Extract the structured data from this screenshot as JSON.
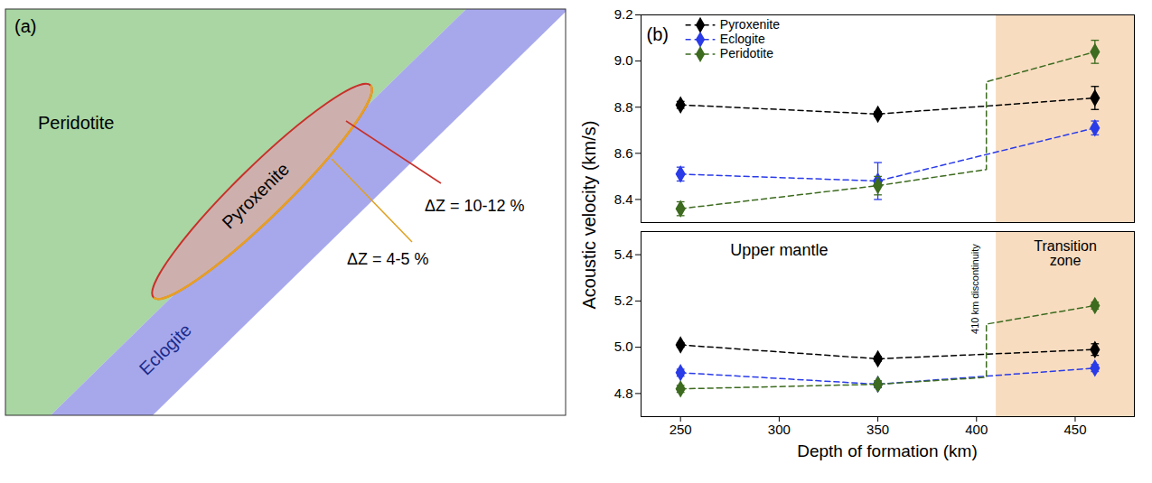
{
  "panel_a": {
    "label": "(a)",
    "regions": [
      "Peridotite",
      "Pyroxenite",
      "Eclogite"
    ],
    "annotations": [
      "ΔZ = 10-12 %",
      "ΔZ = 4-5 %"
    ]
  },
  "chart_data": {
    "type": "line",
    "panel_label": "(b)",
    "xlabel": "Depth of formation (km)",
    "ylabel": "Acoustic velocity (km/s)",
    "x": [
      250,
      350,
      460
    ],
    "xlim": [
      230,
      480
    ],
    "xticks": [
      250,
      300,
      350,
      400,
      450
    ],
    "upper": {
      "ylim": [
        8.3,
        9.2
      ],
      "yticks": [
        8.4,
        8.6,
        8.8,
        {
          "value": 9,
          "label": "9.0"
        },
        9.2
      ]
    },
    "lower": {
      "ylim": [
        4.7,
        5.5
      ],
      "yticks": [
        4.8,
        {
          "value": 5,
          "label": "5.0"
        },
        5.2,
        5.4
      ]
    },
    "legend": "top-left",
    "upper_mantle_label": "Upper mantle",
    "transition_zone": {
      "label": "Transition zone",
      "x_start": 410
    },
    "discontinuity": {
      "label": "410 km discontinuity",
      "x": 405
    },
    "series": [
      {
        "name": "Pyroxenite",
        "color": "#000000",
        "marker": "diamond",
        "line_style": "dashed",
        "upper_values": [
          8.81,
          8.77,
          8.84
        ],
        "upper_errors": [
          0.015,
          0.01,
          0.05
        ],
        "lower_values": [
          5.01,
          4.95,
          4.99
        ],
        "lower_errors": [
          0.01,
          0.01,
          0.025
        ]
      },
      {
        "name": "Eclogite",
        "color": "#2a3be8",
        "marker": "diamond",
        "line_style": "dashed",
        "upper_values": [
          8.51,
          8.48,
          8.71
        ],
        "upper_errors": [
          0.03,
          0.08,
          0.03
        ],
        "lower_values": [
          4.89,
          4.84,
          4.91
        ],
        "lower_errors": [
          0.015,
          0.01,
          0.015
        ]
      },
      {
        "name": "Peridotite",
        "color": "#3d6b1f",
        "marker": "diamond",
        "line_style": "dashed",
        "upper_values": [
          8.36,
          8.46,
          9.04
        ],
        "upper_errors": [
          0.03,
          0.04,
          0.05
        ],
        "lower_values": [
          4.82,
          4.84,
          5.18
        ],
        "lower_errors": [
          0.015,
          0.015,
          0.015
        ],
        "upper_jump": [
          8.53,
          8.91
        ],
        "lower_jump": [
          4.87,
          5.1
        ]
      }
    ]
  }
}
